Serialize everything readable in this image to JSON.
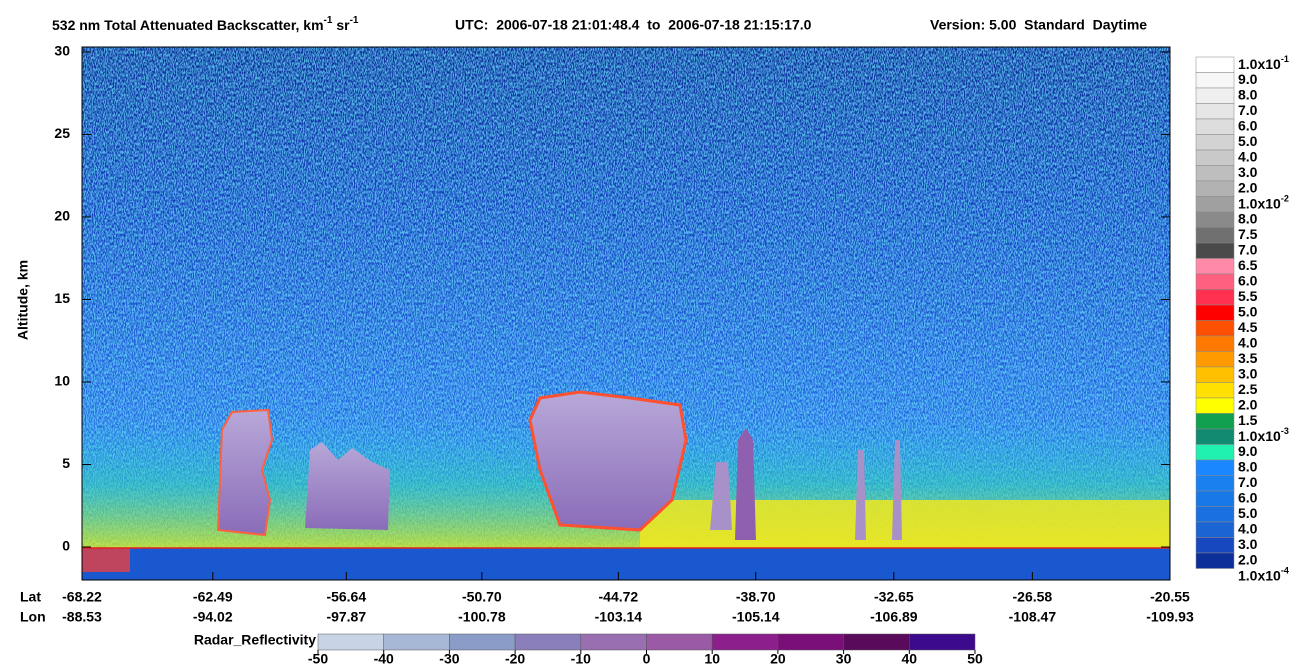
{
  "chart_data": {
    "type": "curtain",
    "title": [
      "532 nm Total Attenuated Backscatter, km",
      "-1",
      " sr",
      "-1"
    ],
    "utc": "UTC:  2006-07-18 21:01:48.4  to  2006-07-18 21:15:17.0",
    "version": "Version: 5.00  Standard  Daytime",
    "ylabel": "Altitude, km",
    "ylim": [
      -2,
      30.3
    ],
    "yticks": [
      0,
      5,
      10,
      15,
      20,
      25,
      30
    ],
    "lat_label": "Lat",
    "lon_label": "Lon",
    "xlim": [
      -68.22,
      -20.55
    ],
    "lat": [
      -68.22,
      -62.49,
      -56.64,
      {
        "value": -50.7,
        "label": "-50.70"
      },
      -44.72,
      {
        "value": -38.7,
        "label": "-38.70"
      },
      -32.65,
      -26.58,
      -20.55
    ],
    "lon": [
      -88.53,
      -94.02,
      -97.87,
      -100.78,
      -103.14,
      -105.14,
      -106.89,
      -108.47,
      -109.93
    ],
    "backscatter_scale": {
      "labels": [
        {
          "text": "1.0x10",
          "sup": "-1"
        },
        "9.0",
        "8.0",
        "7.0",
        "6.0",
        "5.0",
        "4.0",
        "3.0",
        "2.0",
        {
          "text": "1.0x10",
          "sup": "-2"
        },
        "8.0",
        "7.5",
        "7.0",
        "6.5",
        "6.0",
        "5.5",
        "5.0",
        "4.5",
        "4.0",
        "3.5",
        "3.0",
        "2.5",
        "2.0",
        "1.5",
        {
          "text": "1.0x10",
          "sup": "-3"
        },
        "9.0",
        "8.0",
        "7.0",
        "6.0",
        "5.0",
        "4.0",
        "3.0",
        "2.0",
        {
          "text": "1.0x10",
          "sup": "-4"
        }
      ],
      "colors": [
        "#ffffff",
        "#f7f7f7",
        "#efefef",
        "#e6e6e6",
        "#dddddd",
        "#d3d3d3",
        "#c9c9c9",
        "#bebebe",
        "#b2b2b2",
        "#a0a0a0",
        "#8a8a8a",
        "#707070",
        "#4a4a4a",
        "#ff8aa8",
        "#ff6080",
        "#ff3050",
        "#ff0000",
        "#ff5000",
        "#ff7800",
        "#ff9a00",
        "#ffc000",
        "#ffe000",
        "#ffff00",
        "#10a050",
        "#108a70",
        "#20f0b0",
        "#1a86ff",
        "#1a80f0",
        "#1878e8",
        "#1a70e0",
        "#1a64d4",
        "#1848c0",
        "#0c2e98"
      ]
    },
    "radar_scale": {
      "label": "Radar_Reflectivity",
      "lim": [
        -50,
        50
      ],
      "ticks": [
        -50,
        -40,
        -30,
        -20,
        -10,
        0,
        10,
        20,
        30,
        40,
        50
      ],
      "colors": [
        "#c8d4e6",
        "#a6b8d6",
        "#8c9cc8",
        "#8a7fba",
        "#9a6fb2",
        "#9a5aa6",
        "#8c1f8c",
        "#7a0f7a",
        "#5a0a5a",
        "#3c0a8c"
      ]
    }
  }
}
